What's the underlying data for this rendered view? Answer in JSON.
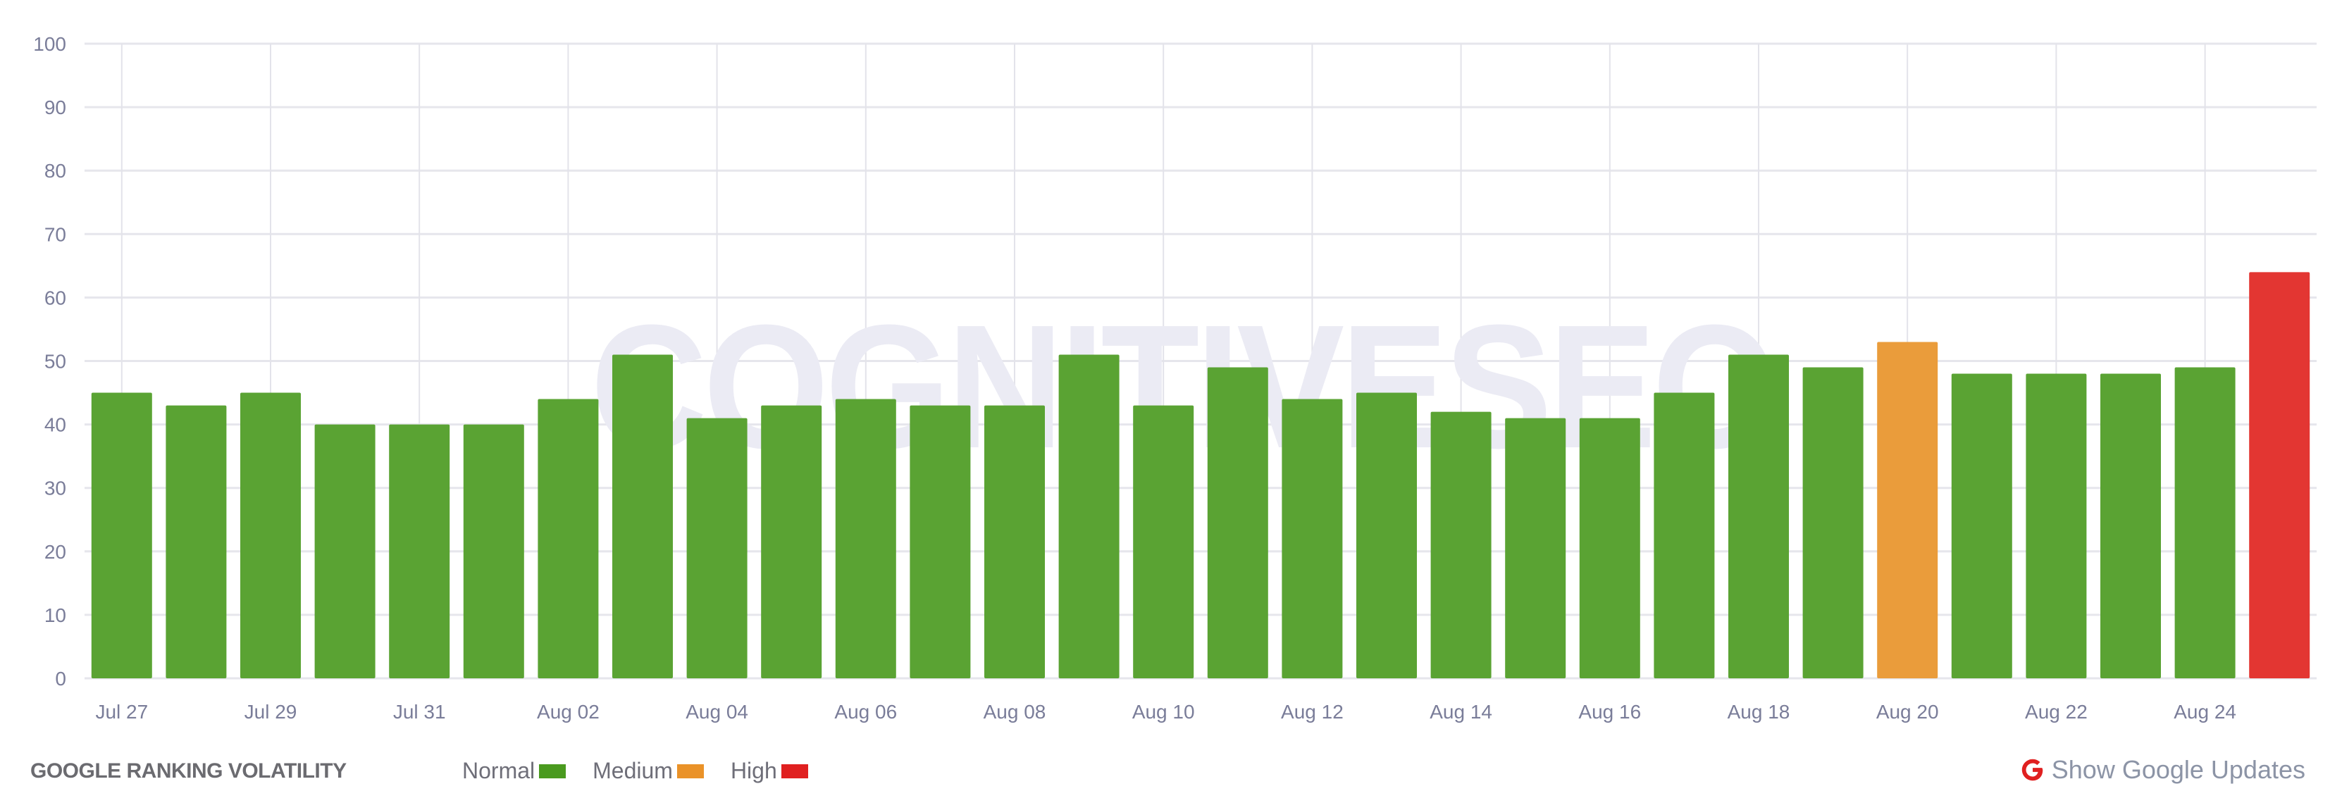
{
  "chart_data": {
    "type": "bar",
    "title": "GOOGLE RANKING VOLATILITY",
    "xlabel": "",
    "ylabel": "",
    "ylim": [
      0,
      100
    ],
    "yticks": [
      0,
      10,
      20,
      30,
      40,
      50,
      60,
      70,
      80,
      90,
      100
    ],
    "grid": true,
    "legend_position": "bottom",
    "categories": [
      "Jul 27",
      "Jul 28",
      "Jul 29",
      "Jul 30",
      "Jul 31",
      "Aug 01",
      "Aug 02",
      "Aug 03",
      "Aug 04",
      "Aug 05",
      "Aug 06",
      "Aug 07",
      "Aug 08",
      "Aug 09",
      "Aug 10",
      "Aug 11",
      "Aug 12",
      "Aug 13",
      "Aug 14",
      "Aug 15",
      "Aug 16",
      "Aug 17",
      "Aug 18",
      "Aug 19",
      "Aug 20",
      "Aug 21",
      "Aug 22",
      "Aug 23",
      "Aug 24",
      "Aug 25"
    ],
    "values": [
      45,
      43,
      45,
      40,
      40,
      40,
      44,
      51,
      41,
      43,
      44,
      43,
      43,
      51,
      43,
      49,
      44,
      45,
      42,
      41,
      41,
      45,
      51,
      49,
      53,
      48,
      48,
      48,
      49,
      64
    ],
    "levels": [
      "normal",
      "normal",
      "normal",
      "normal",
      "normal",
      "normal",
      "normal",
      "normal",
      "normal",
      "normal",
      "normal",
      "normal",
      "normal",
      "normal",
      "normal",
      "normal",
      "normal",
      "normal",
      "normal",
      "normal",
      "normal",
      "normal",
      "normal",
      "normal",
      "medium",
      "normal",
      "normal",
      "normal",
      "normal",
      "high"
    ],
    "xtick_labels": [
      "Jul 27",
      "Jul 29",
      "Jul 31",
      "Aug 02",
      "Aug 04",
      "Aug 06",
      "Aug 08",
      "Aug 10",
      "Aug 12",
      "Aug 14",
      "Aug 16",
      "Aug 18",
      "Aug 20",
      "Aug 22",
      "Aug 24"
    ],
    "legend": [
      {
        "label": "Normal",
        "color": "#4a9a1f"
      },
      {
        "label": "Medium",
        "color": "#ea9228"
      },
      {
        "label": "High",
        "color": "#e02020"
      }
    ]
  },
  "bar_colors": {
    "normal": "#5aa333",
    "medium": "#ea9c3b",
    "high": "#e33632"
  },
  "watermark": "COGNITIVESEO",
  "footer": {
    "title": "GOOGLE RANKING VOLATILITY",
    "legend": [
      {
        "label": "Normal",
        "color": "#4a9a1f"
      },
      {
        "label": "Medium",
        "color": "#ea9228"
      },
      {
        "label": "High",
        "color": "#e02020"
      }
    ],
    "updates_button": {
      "icon": "google-g-icon",
      "label": "Show Google Updates",
      "icon_color": "#e02020"
    }
  }
}
